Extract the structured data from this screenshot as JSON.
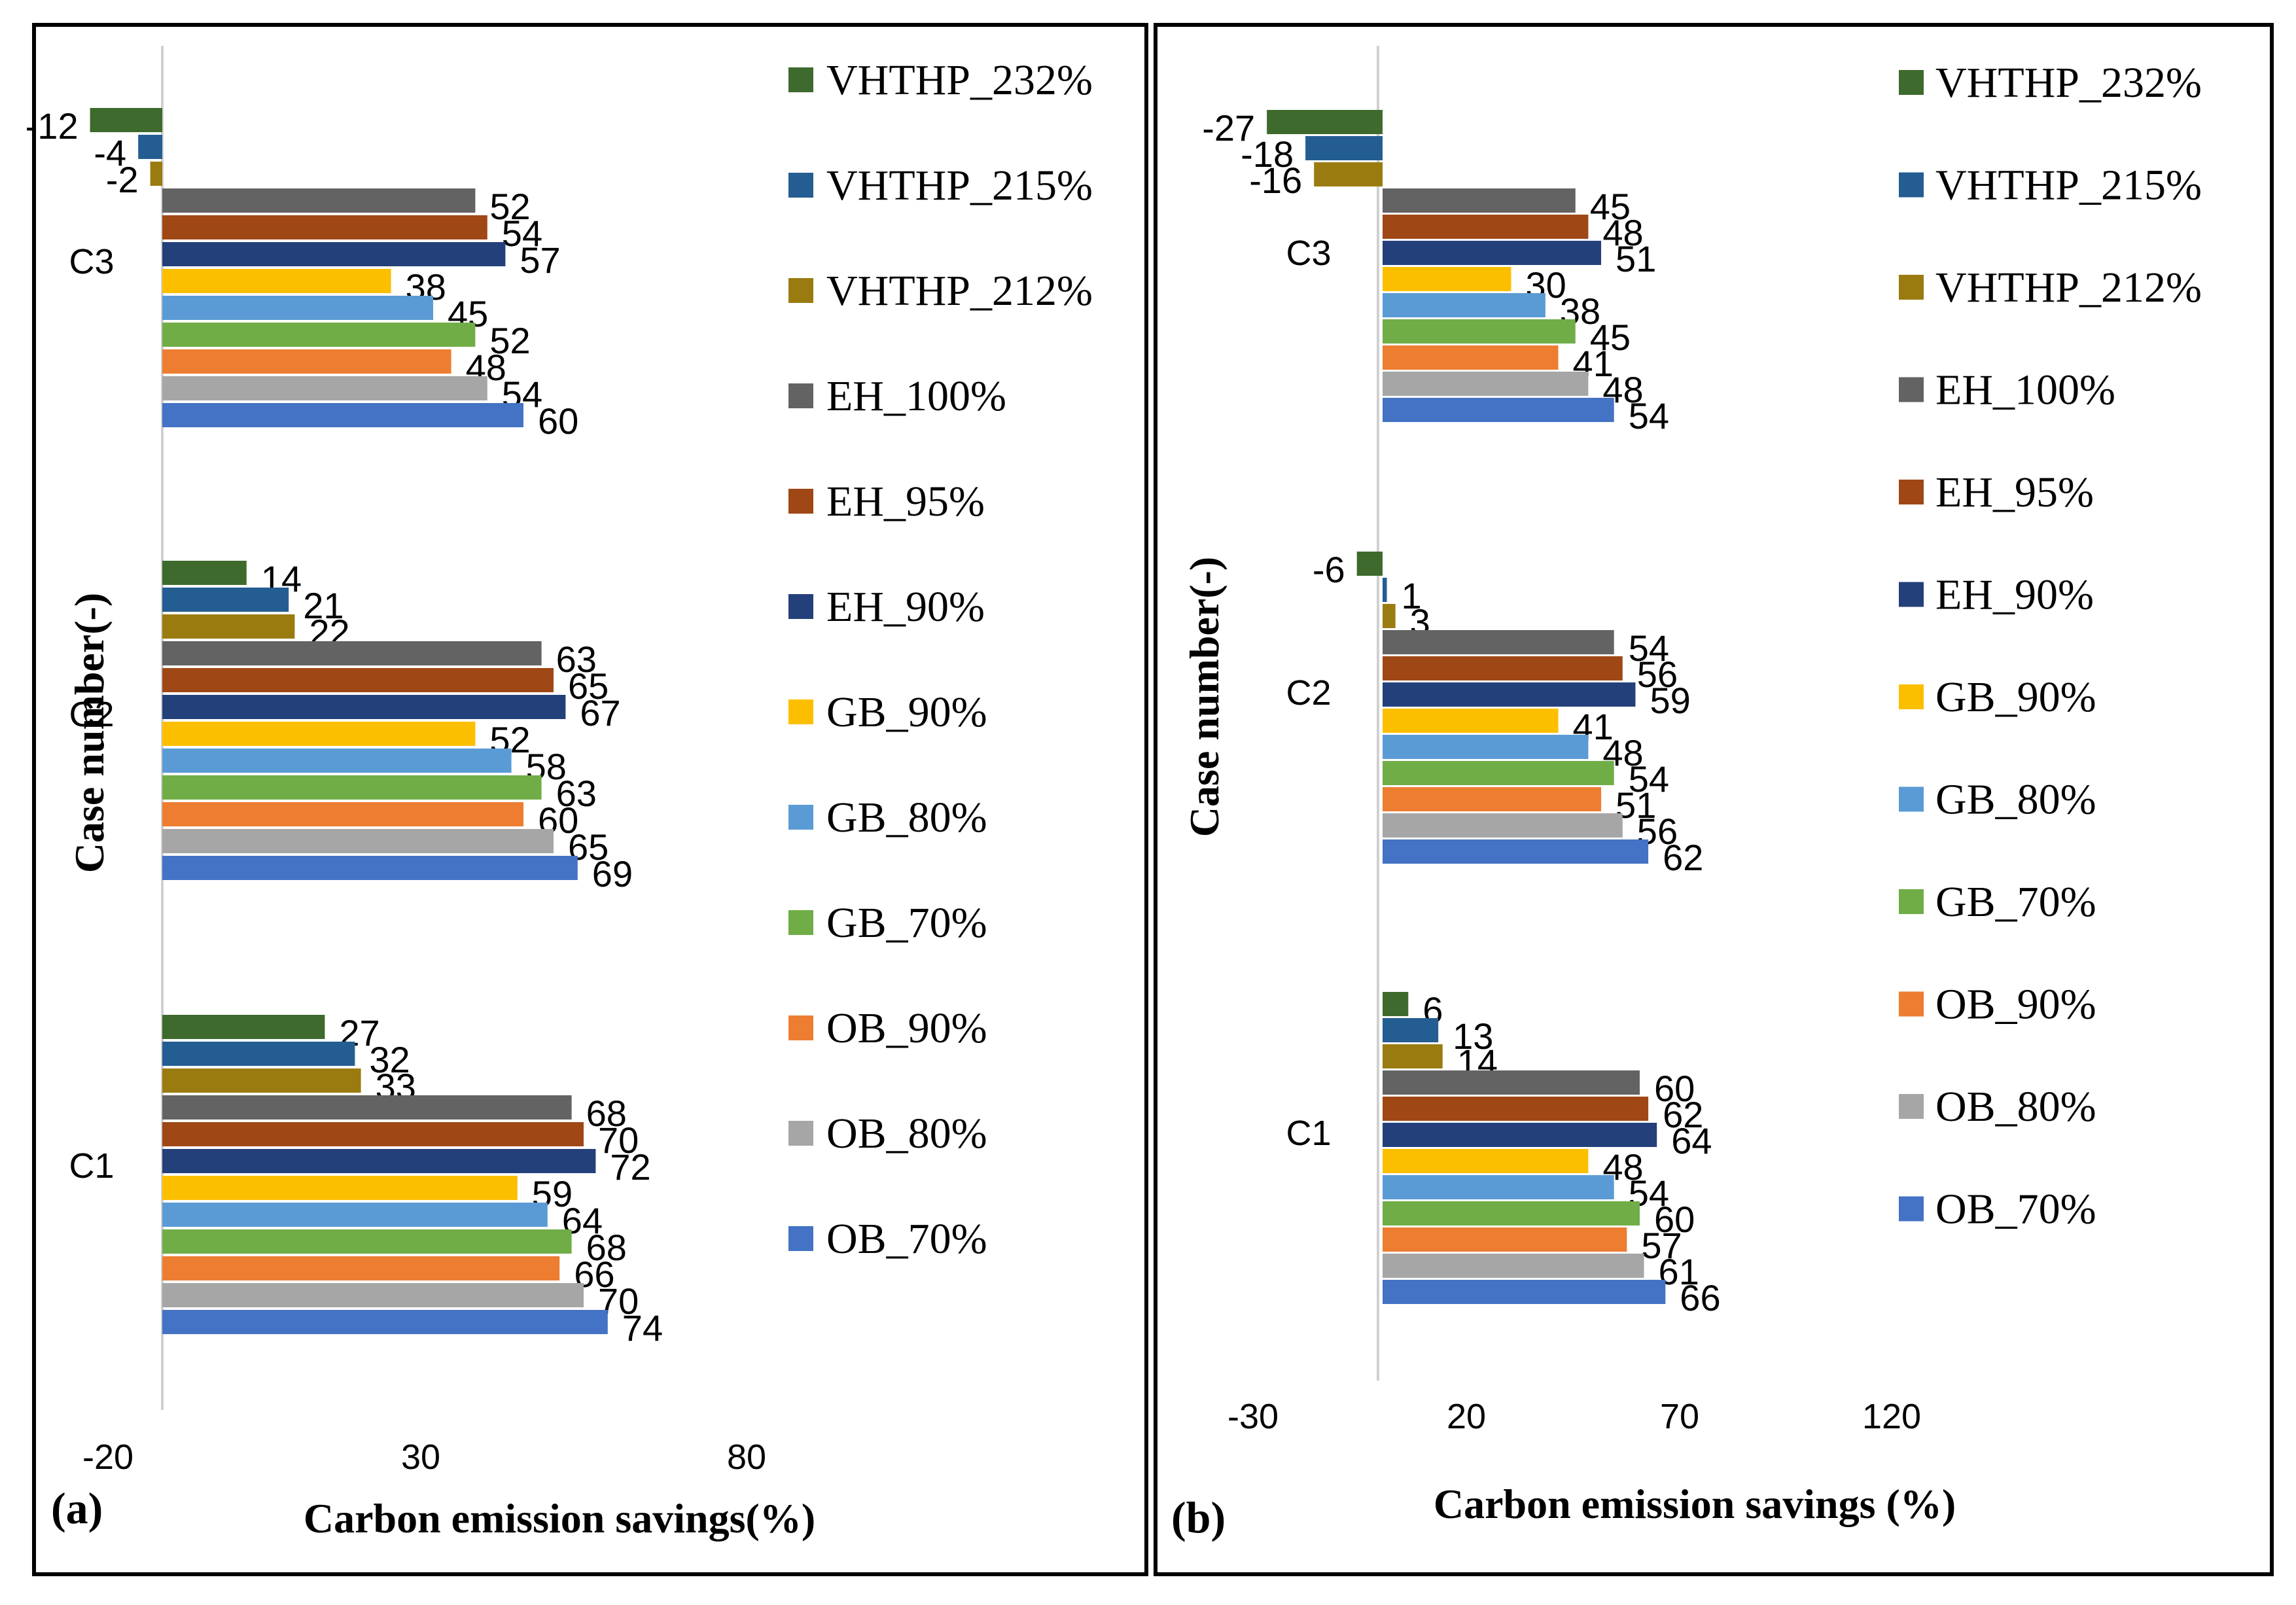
{
  "series_colors": {
    "VHTHP_232%": "#3e6a2d",
    "VHTHP_215%": "#245d92",
    "VHTHP_212%": "#9a7b10",
    "EH_100%": "#636363",
    "EH_95%": "#9f4816",
    "EH_90%": "#23407a",
    "GB_90%": "#fcbf00",
    "GB_80%": "#5b9bd5",
    "GB_70%": "#70ad47",
    "OB_90%": "#ed7d31",
    "OB_80%": "#a6a6a6",
    "OB_70%": "#4472c4"
  },
  "chart_data": [
    {
      "type": "bar",
      "orientation": "horizontal",
      "panel_label": "(a)",
      "xlabel": "Carbon emission savings(%)",
      "ylabel": "Case number(-)",
      "x_ticks": [
        "-20",
        "30",
        "80"
      ],
      "xlim": [
        -20,
        80
      ],
      "categories": [
        "C1",
        "C2",
        "C3"
      ],
      "legend_position": "right",
      "series": [
        {
          "name": "VHTHP_232%",
          "values": [
            27,
            14,
            -12
          ]
        },
        {
          "name": "VHTHP_215%",
          "values": [
            32,
            21,
            -4
          ]
        },
        {
          "name": "VHTHP_212%",
          "values": [
            33,
            22,
            -2
          ]
        },
        {
          "name": "EH_100%",
          "values": [
            68,
            63,
            52
          ]
        },
        {
          "name": "EH_95%",
          "values": [
            70,
            65,
            54
          ]
        },
        {
          "name": "EH_90%",
          "values": [
            72,
            67,
            57
          ]
        },
        {
          "name": "GB_90%",
          "values": [
            59,
            52,
            38
          ]
        },
        {
          "name": "GB_80%",
          "values": [
            64,
            58,
            45
          ]
        },
        {
          "name": "GB_70%",
          "values": [
            68,
            63,
            52
          ]
        },
        {
          "name": "OB_90%",
          "values": [
            66,
            60,
            48
          ]
        },
        {
          "name": "OB_80%",
          "values": [
            70,
            65,
            54
          ]
        },
        {
          "name": "OB_70%",
          "values": [
            74,
            69,
            60
          ]
        }
      ]
    },
    {
      "type": "bar",
      "orientation": "horizontal",
      "panel_label": "(b)",
      "xlabel": "Carbon emission savings (%)",
      "ylabel": "Case number(-)",
      "x_ticks": [
        "-30",
        "20",
        "70",
        "120"
      ],
      "xlim": [
        -30,
        120
      ],
      "categories": [
        "C1",
        "C2",
        "C3"
      ],
      "legend_position": "right",
      "series": [
        {
          "name": "VHTHP_232%",
          "values": [
            6,
            -6,
            -27
          ]
        },
        {
          "name": "VHTHP_215%",
          "values": [
            13,
            1,
            -18
          ]
        },
        {
          "name": "VHTHP_212%",
          "values": [
            14,
            3,
            -16
          ]
        },
        {
          "name": "EH_100%",
          "values": [
            60,
            54,
            45
          ]
        },
        {
          "name": "EH_95%",
          "values": [
            62,
            56,
            48
          ]
        },
        {
          "name": "EH_90%",
          "values": [
            64,
            59,
            51
          ]
        },
        {
          "name": "GB_90%",
          "values": [
            48,
            41,
            30
          ]
        },
        {
          "name": "GB_80%",
          "values": [
            54,
            48,
            38
          ]
        },
        {
          "name": "GB_70%",
          "values": [
            60,
            54,
            45
          ]
        },
        {
          "name": "OB_90%",
          "values": [
            57,
            51,
            41
          ]
        },
        {
          "name": "OB_80%",
          "values": [
            61,
            56,
            48
          ]
        },
        {
          "name": "OB_70%",
          "values": [
            66,
            62,
            54
          ]
        }
      ]
    }
  ]
}
